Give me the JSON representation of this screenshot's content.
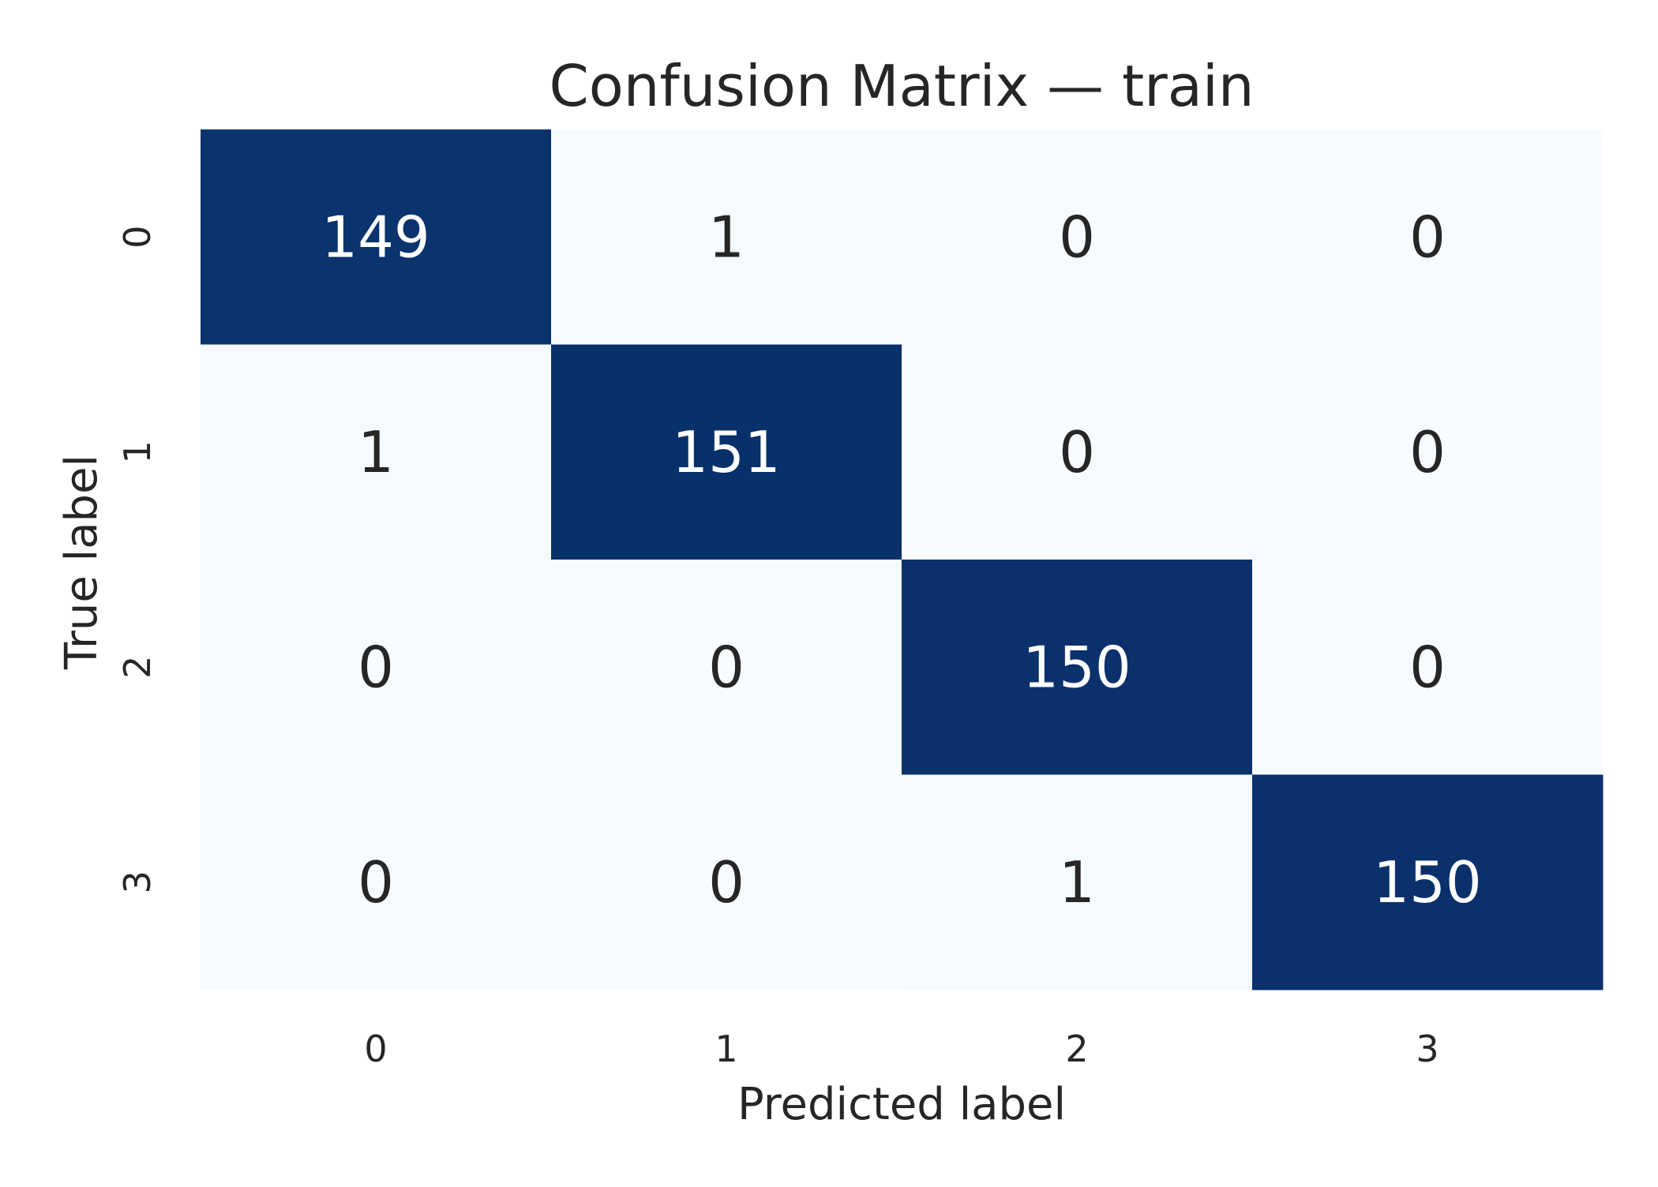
{
  "chart_data": {
    "type": "heatmap",
    "title": "Confusion Matrix — train",
    "xlabel": "Predicted label",
    "ylabel": "True label",
    "x_categories": [
      "0",
      "1",
      "2",
      "3"
    ],
    "y_categories": [
      "0",
      "1",
      "2",
      "3"
    ],
    "matrix": [
      [
        149,
        1,
        0,
        0
      ],
      [
        1,
        151,
        0,
        0
      ],
      [
        0,
        0,
        150,
        0
      ],
      [
        0,
        0,
        1,
        150
      ]
    ],
    "colormap": "Blues",
    "colors": {
      "low": "#f7fbff",
      "high": "#08306b",
      "text_dark": "#262626",
      "text_light": "#ffffff"
    },
    "colorbar": false,
    "grid": false
  }
}
